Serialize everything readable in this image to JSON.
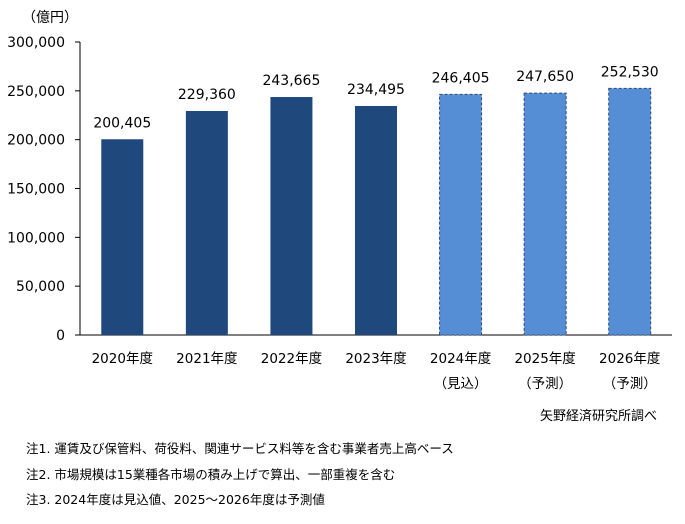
{
  "chart_data": {
    "type": "bar",
    "unit_label": "（億円）",
    "categories": [
      "2020年度",
      "2021年度",
      "2022年度",
      "2023年度",
      "2024年度",
      "2025年度",
      "2026年度"
    ],
    "category_sublabels": [
      "",
      "",
      "",
      "",
      "（見込）",
      "（予測）",
      "（予測）"
    ],
    "values": [
      200405,
      229360,
      243665,
      234495,
      246405,
      247650,
      252530
    ],
    "data_labels": [
      "200,405",
      "229,360",
      "243,665",
      "234,495",
      "246,405",
      "247,650",
      "252,530"
    ],
    "bar_kind": [
      "actual",
      "actual",
      "actual",
      "actual",
      "estimate",
      "forecast",
      "forecast"
    ],
    "ylim": [
      0,
      300000
    ],
    "yticks": [
      0,
      50000,
      100000,
      150000,
      200000,
      250000,
      300000
    ],
    "ytick_labels": [
      "0",
      "50,000",
      "100,000",
      "150,000",
      "200,000",
      "250,000",
      "300,000"
    ],
    "grid": false,
    "colors": {
      "actual": "#1f497d",
      "projected": "#558ed5",
      "projected_border": "#2c4a7a"
    }
  },
  "source": "矢野経済研究所調べ",
  "notes": [
    "注1.  運賃及び保管料、荷役料、関連サービス料等を含む事業者売上高ベース",
    "注2.  市場規模は15業種各市場の積み上げで算出、一部重複を含む",
    "注3.  2024年度は見込値、2025～2026年度は予測値"
  ]
}
